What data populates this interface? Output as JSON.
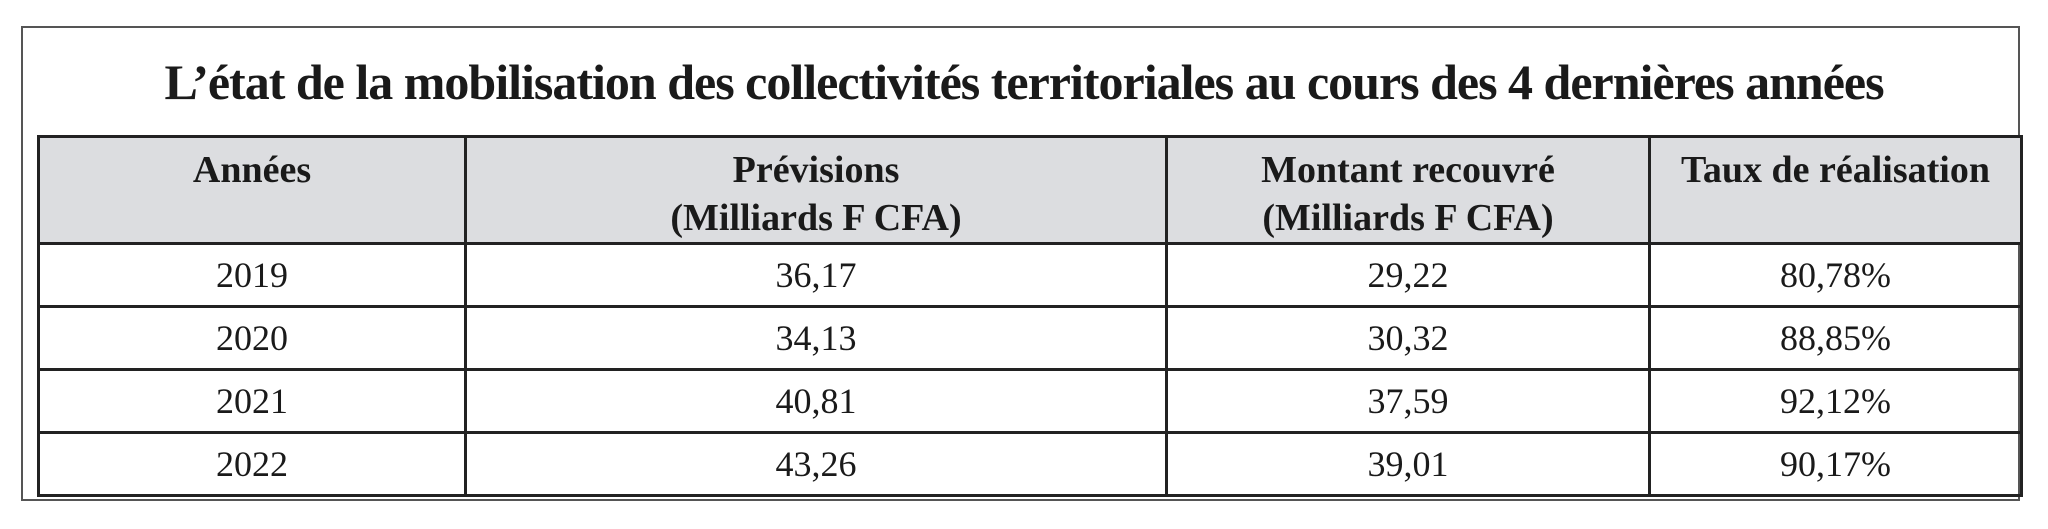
{
  "title": "L’état de la mobilisation des collectivités territoriales au cours des 4 dernières années",
  "table": {
    "header": [
      [
        "Années"
      ],
      [
        "Prévisions",
        "(Milliards F CFA)"
      ],
      [
        "Montant recouvré",
        "(Milliards F CFA)"
      ],
      [
        "Taux de réalisation"
      ]
    ],
    "rows": [
      [
        "2019",
        "36,17",
        "29,22",
        "80,78%"
      ],
      [
        "2020",
        "34,13",
        "30,32",
        "88,85%"
      ],
      [
        "2021",
        "40,81",
        "37,59",
        "92,12%"
      ],
      [
        "2022",
        "43,26",
        "39,01",
        "90,17%"
      ]
    ]
  }
}
